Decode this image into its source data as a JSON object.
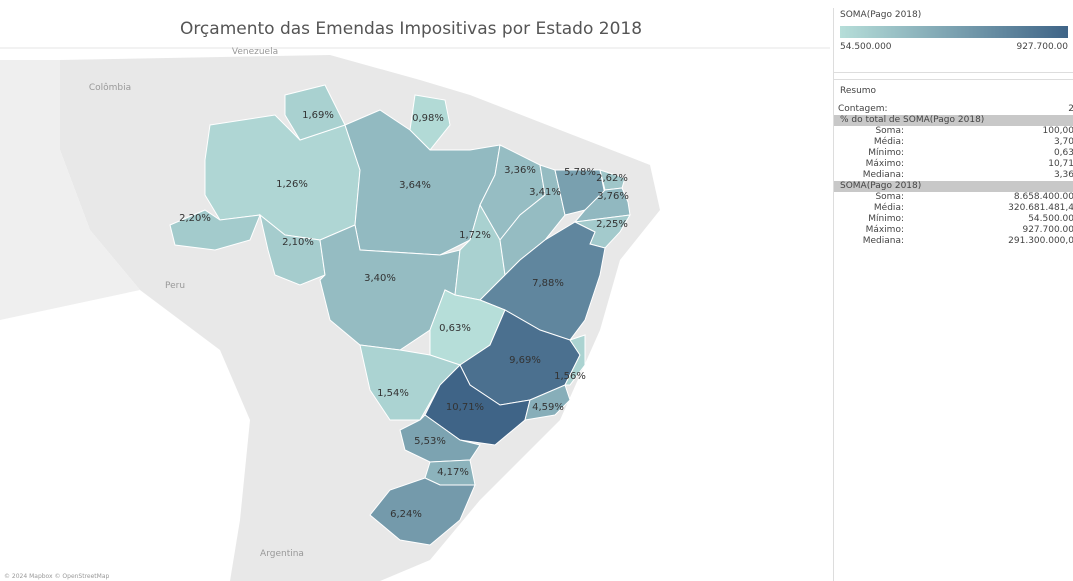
{
  "title": "Orçamento das Emendas Impositivas por Estado 2018",
  "countries": [
    "Venezuela",
    "Colômbia",
    "Peru",
    "Argentina"
  ],
  "attribution": "© 2024 Mapbox © OpenStreetMap",
  "states": [
    {
      "label": "1,26%",
      "value": 1.26
    },
    {
      "label": "1,69%",
      "value": 1.69
    },
    {
      "label": "0,98%",
      "value": 0.98
    },
    {
      "label": "3,64%",
      "value": 3.64
    },
    {
      "label": "2,20%",
      "value": 2.2
    },
    {
      "label": "2,10%",
      "value": 2.1
    },
    {
      "label": "3,40%",
      "value": 3.4
    },
    {
      "label": "3,36%",
      "value": 3.36
    },
    {
      "label": "1,72%",
      "value": 1.72
    },
    {
      "label": "3,41%",
      "value": 3.41
    },
    {
      "label": "5,78%",
      "value": 5.78
    },
    {
      "label": "2,62%",
      "value": 2.62
    },
    {
      "label": "3,76%",
      "value": 3.76
    },
    {
      "label": "2,25%",
      "value": 2.25
    },
    {
      "label": "7,88%",
      "value": 7.88
    },
    {
      "label": "0,63%",
      "value": 0.63
    },
    {
      "label": "9,69%",
      "value": 9.69
    },
    {
      "label": "1,56%",
      "value": 1.56
    },
    {
      "label": "1,54%",
      "value": 1.54
    },
    {
      "label": "10,71%",
      "value": 10.71
    },
    {
      "label": "4,59%",
      "value": 4.59
    },
    {
      "label": "5,53%",
      "value": 5.53
    },
    {
      "label": "4,17%",
      "value": 4.17
    },
    {
      "label": "6,24%",
      "value": 6.24
    }
  ],
  "legend": {
    "title": "SOMA(Pago 2018)",
    "min": "54.500.000",
    "max": "927.700.00"
  },
  "summary": {
    "title": "Resumo",
    "count": {
      "key": "Contagem:",
      "value": "2"
    },
    "sections": [
      {
        "title": "% do total de SOMA(Pago 2018)",
        "rows": [
          [
            "Soma:",
            "100,00"
          ],
          [
            "Média:",
            "3,70"
          ],
          [
            "Mínimo:",
            "0,63"
          ],
          [
            "Máximo:",
            "10,71"
          ],
          [
            "Mediana:",
            "3,36"
          ]
        ]
      },
      {
        "title": "SOMA(Pago 2018)",
        "rows": [
          [
            "Soma:",
            "8.658.400.00"
          ],
          [
            "Média:",
            "320.681.481,4"
          ],
          [
            "Mínimo:",
            "54.500.00"
          ],
          [
            "Máximo:",
            "927.700.00"
          ],
          [
            "Mediana:",
            "291.300.000,0"
          ]
        ]
      }
    ]
  }
}
